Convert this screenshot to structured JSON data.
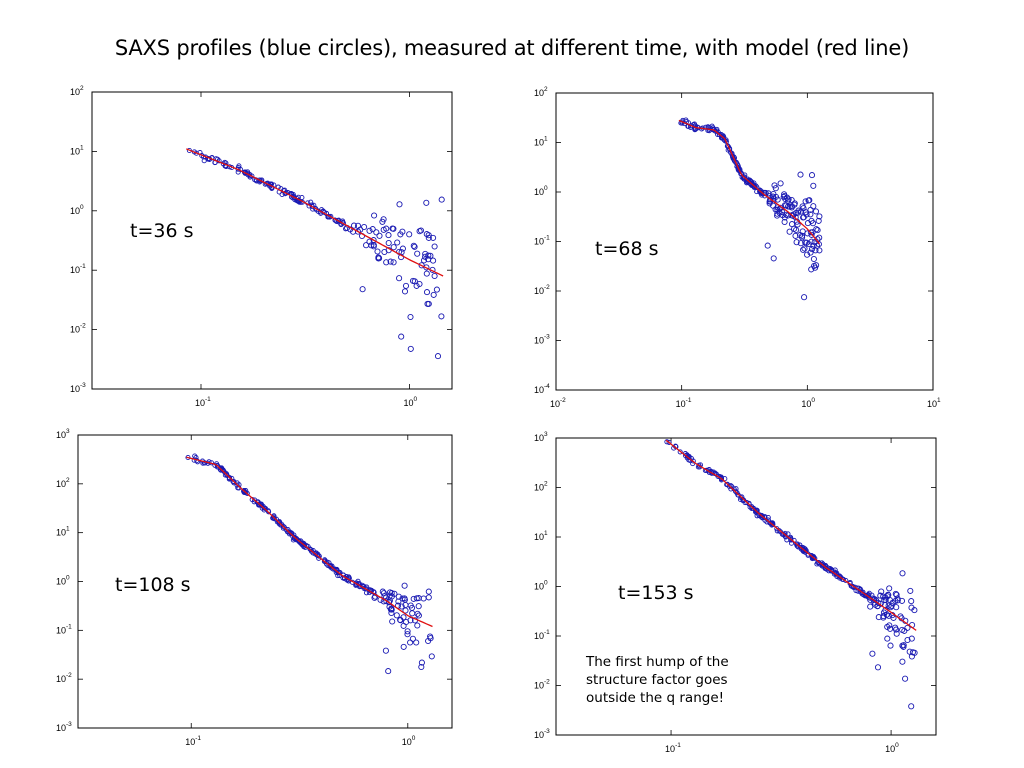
{
  "slide": {
    "title": "SAXS profiles (blue circles), measured at different time, with model (red line)",
    "note": "The first hump of the structure factor goes outside the q range!"
  },
  "colors": {
    "points": "#1a1ab3",
    "model": "#e01010"
  },
  "chart_data": [
    {
      "type": "scatter",
      "time_label": "t=36 s",
      "x_scale": "log",
      "y_scale": "log",
      "xlim": [
        0.03,
        1.6
      ],
      "ylim": [
        0.001,
        100
      ],
      "x_ticks": [
        0.1,
        1
      ],
      "y_ticks": [
        0.001,
        0.01,
        0.1,
        1,
        10,
        100
      ],
      "x_tick_labels": [
        [
          "10",
          "-1"
        ],
        [
          "10",
          "0"
        ]
      ],
      "y_tick_labels": [
        [
          "10",
          "-3"
        ],
        [
          "10",
          "-2"
        ],
        [
          "10",
          "-1"
        ],
        [
          "10",
          "0"
        ],
        [
          "10",
          "1"
        ],
        [
          "10",
          "2"
        ]
      ],
      "legend": "none",
      "grid": false,
      "series": [
        {
          "role": "measured",
          "marker": "circle",
          "x_range": [
            0.085,
            1.45
          ],
          "points": 220,
          "profile": [
            [
              0.085,
              11
            ],
            [
              0.15,
              5
            ],
            [
              0.3,
              1.5
            ],
            [
              0.6,
              0.4
            ],
            [
              1.0,
              0.15
            ],
            [
              1.45,
              0.08
            ]
          ],
          "scatter_from": 0.5
        },
        {
          "role": "model",
          "line": "solid",
          "x": [
            0.085,
            0.15,
            0.3,
            0.6,
            1.0,
            1.45
          ],
          "y": [
            11,
            5,
            1.5,
            0.4,
            0.15,
            0.08
          ]
        }
      ]
    },
    {
      "type": "scatter",
      "time_label": "t=68 s",
      "x_scale": "log",
      "y_scale": "log",
      "xlim": [
        0.01,
        10
      ],
      "ylim": [
        0.0001,
        100
      ],
      "x_ticks": [
        0.01,
        0.1,
        1,
        10
      ],
      "y_ticks": [
        0.0001,
        0.001,
        0.01,
        0.1,
        1,
        10,
        100
      ],
      "x_tick_labels": [
        [
          "10",
          "-2"
        ],
        [
          "10",
          "-1"
        ],
        [
          "10",
          "0"
        ],
        [
          "10",
          "1"
        ]
      ],
      "y_tick_labels": [
        [
          "10",
          "-4"
        ],
        [
          "10",
          "-3"
        ],
        [
          "10",
          "-2"
        ],
        [
          "10",
          "-1"
        ],
        [
          "10",
          "0"
        ],
        [
          "10",
          "1"
        ],
        [
          "10",
          "2"
        ]
      ],
      "legend": "none",
      "grid": false,
      "series": [
        {
          "role": "measured",
          "marker": "circle",
          "x_range": [
            0.095,
            1.25
          ],
          "points": 260,
          "profile": [
            [
              0.095,
              28
            ],
            [
              0.13,
              20
            ],
            [
              0.18,
              18
            ],
            [
              0.22,
              12
            ],
            [
              0.3,
              2.2
            ],
            [
              0.45,
              0.9
            ],
            [
              0.7,
              0.4
            ],
            [
              1.0,
              0.18
            ],
            [
              1.25,
              0.09
            ]
          ],
          "scatter_from": 0.45
        },
        {
          "role": "model",
          "line": "solid",
          "x": [
            0.095,
            0.13,
            0.18,
            0.22,
            0.3,
            0.45,
            0.7,
            1.0,
            1.25
          ],
          "y": [
            28,
            20,
            18,
            12,
            2.2,
            0.9,
            0.4,
            0.18,
            0.09
          ]
        }
      ]
    },
    {
      "type": "scatter",
      "time_label": "t=108 s",
      "x_scale": "log",
      "y_scale": "log",
      "xlim": [
        0.03,
        1.6
      ],
      "ylim": [
        0.001,
        1000
      ],
      "x_ticks": [
        0.1,
        1
      ],
      "y_ticks": [
        0.001,
        0.01,
        0.1,
        1,
        10,
        100,
        1000
      ],
      "x_tick_labels": [
        [
          "10",
          "-1"
        ],
        [
          "10",
          "0"
        ]
      ],
      "y_tick_labels": [
        [
          "10",
          "-3"
        ],
        [
          "10",
          "-2"
        ],
        [
          "10",
          "-1"
        ],
        [
          "10",
          "0"
        ],
        [
          "10",
          "1"
        ],
        [
          "10",
          "2"
        ],
        [
          "10",
          "3"
        ]
      ],
      "legend": "none",
      "grid": false,
      "series": [
        {
          "role": "measured",
          "marker": "circle",
          "x_range": [
            0.095,
            1.3
          ],
          "points": 280,
          "profile": [
            [
              0.095,
              350
            ],
            [
              0.13,
              250
            ],
            [
              0.17,
              80
            ],
            [
              0.22,
              30
            ],
            [
              0.3,
              8
            ],
            [
              0.5,
              1.3
            ],
            [
              0.8,
              0.4
            ],
            [
              1.0,
              0.2
            ],
            [
              1.3,
              0.12
            ]
          ],
          "scatter_from": 0.7
        },
        {
          "role": "model",
          "line": "solid",
          "x": [
            0.095,
            0.13,
            0.17,
            0.22,
            0.3,
            0.5,
            0.8,
            1.0,
            1.3
          ],
          "y": [
            350,
            250,
            80,
            30,
            8,
            1.3,
            0.4,
            0.2,
            0.12
          ]
        }
      ]
    },
    {
      "type": "scatter",
      "time_label": "t=153 s",
      "x_scale": "log",
      "y_scale": "log",
      "xlim": [
        0.03,
        1.6
      ],
      "ylim": [
        0.001,
        1000
      ],
      "x_ticks": [
        0.1,
        1
      ],
      "y_ticks": [
        0.001,
        0.01,
        0.1,
        1,
        10,
        100,
        1000
      ],
      "x_tick_labels": [
        [
          "10",
          "-1"
        ],
        [
          "10",
          "0"
        ]
      ],
      "y_tick_labels": [
        [
          "10",
          "-3"
        ],
        [
          "10",
          "-2"
        ],
        [
          "10",
          "-1"
        ],
        [
          "10",
          "0"
        ],
        [
          "10",
          "1"
        ],
        [
          "10",
          "2"
        ],
        [
          "10",
          "3"
        ]
      ],
      "legend": "none",
      "grid": false,
      "series": [
        {
          "role": "measured",
          "marker": "circle",
          "x_range": [
            0.095,
            1.3
          ],
          "points": 300,
          "profile": [
            [
              0.095,
              900
            ],
            [
              0.13,
              300
            ],
            [
              0.17,
              150
            ],
            [
              0.25,
              30
            ],
            [
              0.5,
              2.5
            ],
            [
              0.8,
              0.6
            ],
            [
              1.0,
              0.3
            ],
            [
              1.3,
              0.13
            ]
          ],
          "scatter_from": 0.8
        },
        {
          "role": "model",
          "line": "solid",
          "x": [
            0.095,
            0.13,
            0.17,
            0.25,
            0.5,
            0.8,
            1.0,
            1.3
          ],
          "y": [
            900,
            300,
            150,
            30,
            2.5,
            0.6,
            0.3,
            0.13
          ]
        }
      ]
    }
  ]
}
